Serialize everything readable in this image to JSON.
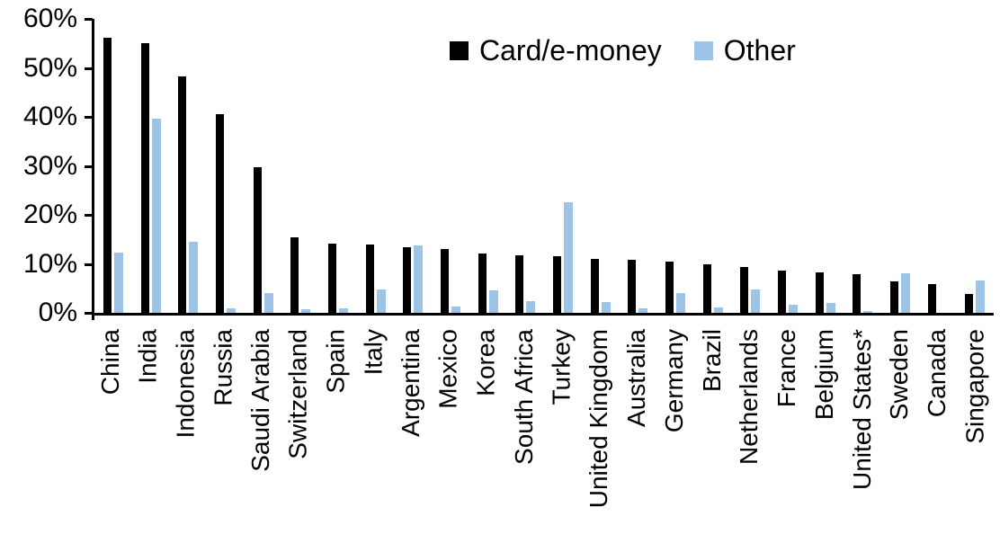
{
  "chart_data": {
    "type": "bar",
    "title": "",
    "xlabel": "",
    "ylabel": "",
    "ylim": [
      0,
      60
    ],
    "y_tick_labels": [
      "60%",
      "50%",
      "40%",
      "30%",
      "20%",
      "10%",
      "0%"
    ],
    "grid": "off",
    "legend_position": "top-center",
    "categories": [
      "China",
      "India",
      "Indonesia",
      "Russia",
      "Saudi Arabia",
      "Switzerland",
      "Spain",
      "Italy",
      "Argentina",
      "Mexico",
      "Korea",
      "South Africa",
      "Turkey",
      "United Kingdom",
      "Australia",
      "Germany",
      "Brazil",
      "Netherlands",
      "France",
      "Belgium",
      "United States*",
      "Sweden",
      "Canada",
      "Singapore"
    ],
    "series": [
      {
        "name": "Card/e-money",
        "color": "#000000",
        "values": [
          56.2,
          55.0,
          48.3,
          40.5,
          29.8,
          15.5,
          14.2,
          14.0,
          13.4,
          13.0,
          12.2,
          11.7,
          11.6,
          11.1,
          10.8,
          10.5,
          10.0,
          9.3,
          8.7,
          8.2,
          7.9,
          6.5,
          5.8,
          3.9
        ]
      },
      {
        "name": "Other",
        "color": "#9DC3E6",
        "values": [
          12.3,
          39.7,
          14.5,
          0.9,
          4.0,
          0.7,
          1.0,
          4.7,
          13.8,
          1.3,
          4.6,
          2.4,
          22.5,
          2.3,
          1.0,
          4.0,
          1.2,
          4.8,
          1.6,
          2.0,
          0.3,
          8.0,
          0.0,
          6.7
        ]
      }
    ]
  }
}
